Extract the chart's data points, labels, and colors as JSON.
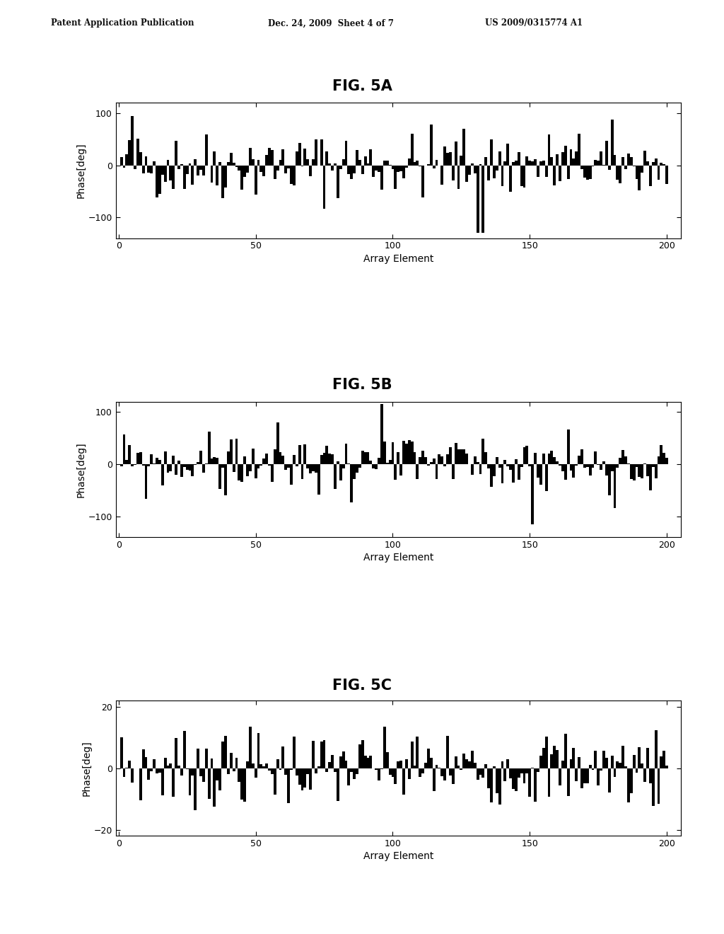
{
  "title_5a": "FIG. 5A",
  "title_5b": "FIG. 5B",
  "title_5c": "FIG. 5C",
  "xlabel": "Array Element",
  "ylabel": "Phase[deg]",
  "n_elements": 200,
  "ylim_ab": [
    -140,
    120
  ],
  "ylim_c": [
    -22,
    22
  ],
  "yticks_ab": [
    -100,
    0,
    100
  ],
  "yticks_c": [
    -20,
    0,
    20
  ],
  "xticks": [
    0,
    50,
    100,
    150,
    200
  ],
  "xlim": [
    -1,
    205
  ],
  "bar_color": "#000000",
  "background_color": "#ffffff",
  "header_left": "Patent Application Publication",
  "header_mid": "Dec. 24, 2009  Sheet 4 of 7",
  "header_right": "US 2009/0315774 A1",
  "seed_a": 42,
  "seed_b": 99,
  "seed_c": 7,
  "scale_a": 32,
  "scale_b": 28,
  "scale_c": 6
}
